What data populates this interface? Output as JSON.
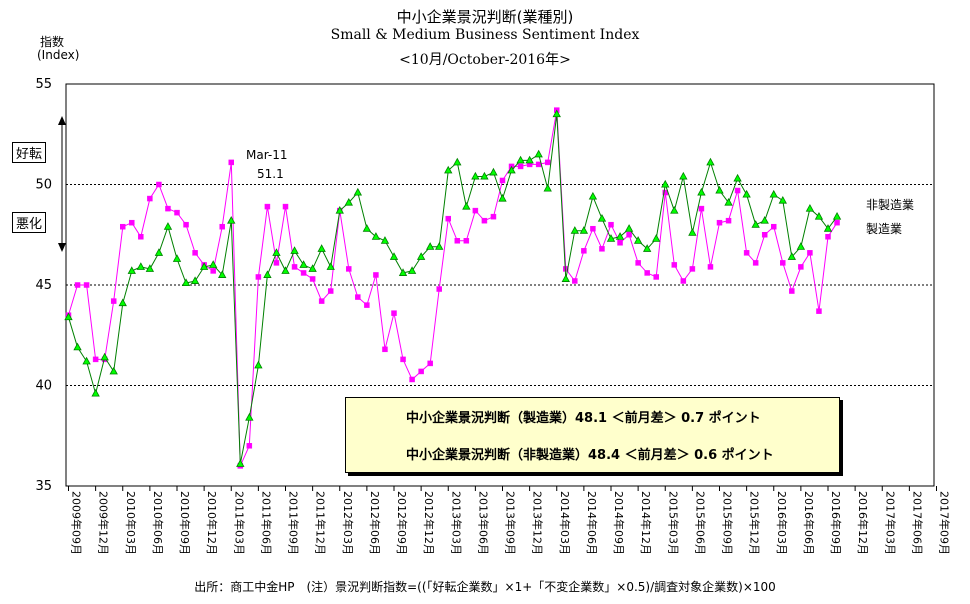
{
  "title": "中小企業景況判断(業種別)",
  "subtitle_en": "Small & Medium Business Sentiment Index",
  "subtitle_date": "<10月/October-2016年>",
  "y_axis_label": "指数",
  "y_axis_label_en": "(Index)",
  "y_tick_labels": [
    "55",
    "50",
    "45",
    "40",
    "35"
  ],
  "side_labels": {
    "good": "好転",
    "bad": "悪化"
  },
  "series_end_labels": {
    "nonmanufacturing": "非製造業",
    "manufacturing": "製造業"
  },
  "annotation": {
    "month": "Mar-11",
    "value": "51.1"
  },
  "legend": {
    "manufacturing": "中小企業景況判断（製造業）48.1 ＜前月差＞ 0.7 ポイント",
    "nonmanufacturing": "中小企業景況判断（非製造業）48.4 ＜前月差＞ 0.6 ポイント"
  },
  "footer": "出所：商工中金HP　(注）景況判断指数=((「好転企業数」×1+「不変企業数」×0.5)/調査対象企業数)×100",
  "colors": {
    "manufacturing": "#ff00ff",
    "nonmanufacturing": "#008000",
    "nonmfg_marker_fill": "#00ff00",
    "legend_bg": "#ffffcc"
  },
  "chart_data": {
    "type": "line",
    "ylim": [
      35,
      55
    ],
    "grid_y": [
      40,
      45,
      50
    ],
    "x_tick_labels": [
      "2009年09月",
      "2009年12月",
      "2010年03月",
      "2010年06月",
      "2010年09月",
      "2010年12月",
      "2011年03月",
      "2011年06月",
      "2011年09月",
      "2011年12月",
      "2012年03月",
      "2012年06月",
      "2012年09月",
      "2012年12月",
      "2013年03月",
      "2013年06月",
      "2013年09月",
      "2013年12月",
      "2014年03月",
      "2014年06月",
      "2014年09月",
      "2014年12月",
      "2015年03月",
      "2015年06月",
      "2015年09月",
      "2015年12月",
      "2016年03月",
      "2016年06月",
      "2016年09月",
      "2016年12月",
      "2017年03月",
      "2017年06月",
      "2017年09月"
    ],
    "series": [
      {
        "name": "中小企業景況判断（製造業）",
        "values": [
          43.5,
          45.0,
          45.0,
          41.3,
          41.3,
          44.2,
          47.9,
          48.1,
          47.4,
          49.3,
          50.0,
          48.8,
          48.6,
          48.0,
          46.6,
          46.0,
          45.7,
          47.9,
          51.1,
          36.0,
          37.0,
          45.4,
          48.9,
          46.1,
          48.9,
          45.9,
          45.6,
          45.3,
          44.2,
          44.7,
          48.7,
          45.8,
          44.4,
          44.0,
          45.5,
          41.8,
          43.6,
          41.3,
          40.3,
          40.7,
          41.1,
          44.8,
          48.3,
          47.2,
          47.2,
          48.7,
          48.2,
          48.4,
          50.2,
          50.9,
          50.9,
          51.0,
          51.0,
          51.1,
          53.7,
          45.8,
          45.2,
          46.7,
          47.8,
          46.8,
          48.0,
          47.1,
          47.5,
          46.1,
          45.6,
          45.4,
          49.6,
          46.0,
          45.2,
          45.8,
          48.8,
          45.9,
          48.1,
          48.2,
          49.7,
          46.6,
          46.1,
          47.5,
          47.9,
          46.1,
          44.7,
          45.9,
          46.6,
          43.7,
          47.4,
          48.1
        ]
      },
      {
        "name": "中小企業景況判断（非製造業）",
        "values": [
          43.4,
          41.9,
          41.2,
          39.6,
          41.4,
          40.7,
          44.1,
          45.7,
          45.9,
          45.8,
          46.6,
          47.9,
          46.3,
          45.1,
          45.2,
          45.9,
          46.0,
          45.5,
          48.2,
          36.1,
          38.4,
          41.0,
          45.5,
          46.6,
          45.7,
          46.7,
          46.0,
          45.8,
          46.8,
          45.9,
          48.7,
          49.1,
          49.6,
          47.8,
          47.4,
          47.2,
          46.4,
          45.6,
          45.7,
          46.4,
          46.9,
          46.9,
          50.7,
          51.1,
          48.9,
          50.4,
          50.4,
          50.6,
          49.3,
          50.7,
          51.2,
          51.2,
          51.5,
          49.8,
          53.5,
          45.3,
          47.7,
          47.7,
          49.4,
          48.3,
          47.3,
          47.4,
          47.8,
          47.2,
          46.8,
          47.3,
          50.0,
          48.7,
          50.4,
          47.6,
          49.6,
          51.1,
          49.7,
          49.1,
          50.3,
          49.5,
          48.0,
          48.2,
          49.5,
          49.2,
          46.4,
          46.9,
          48.8,
          48.4,
          47.8,
          48.4
        ]
      }
    ]
  }
}
